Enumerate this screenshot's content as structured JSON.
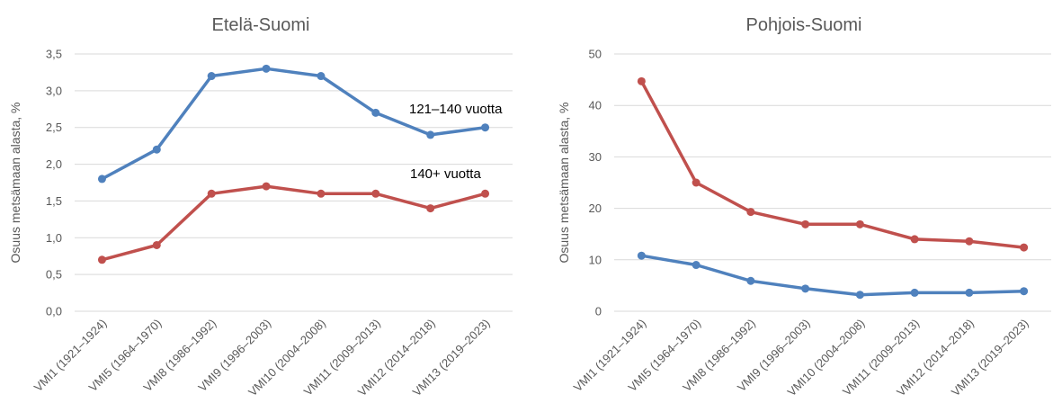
{
  "colors": {
    "blue": "#4f81bd",
    "red": "#c0504d",
    "grid": "#d9d9d9",
    "text": "#595959"
  },
  "chart_data": [
    {
      "type": "line",
      "title": "Etelä-Suomi",
      "xlabel": "",
      "ylabel": "Osuus metsämaan alasta, %",
      "ylim": [
        0,
        3.5
      ],
      "yticks": [
        "0,0",
        "0,5",
        "1,0",
        "1,5",
        "2,0",
        "2,5",
        "3,0",
        "3,5"
      ],
      "grid": true,
      "categories": [
        "VMI1 (1921–1924)",
        "VMI5 (1964–1970)",
        "VMI8 (1986–1992)",
        "VMI9 (1996–2003)",
        "VMI10 (2004–2008)",
        "VMI11 (2009–2013)",
        "VMI12 (2014–2018)",
        "VMI13 (2019–2023)"
      ],
      "series": [
        {
          "name": "121–140 vuotta",
          "color": "#4f81bd",
          "values": [
            1.8,
            2.2,
            3.2,
            3.3,
            3.2,
            2.7,
            2.4,
            2.5
          ]
        },
        {
          "name": "140+ vuotta",
          "color": "#c0504d",
          "values": [
            0.7,
            0.9,
            1.6,
            1.7,
            1.6,
            1.6,
            1.4,
            1.6
          ]
        }
      ]
    },
    {
      "type": "line",
      "title": "Pohjois-Suomi",
      "xlabel": "",
      "ylabel": "Osuus metsämaan alasta, %",
      "ylim": [
        0,
        50
      ],
      "yticks": [
        "0",
        "10",
        "20",
        "30",
        "40",
        "50"
      ],
      "grid": true,
      "categories": [
        "VMI1 (1921–1924)",
        "VMI5 (1964–1970)",
        "VMI8 (1986–1992)",
        "VMI9 (1996–2003)",
        "VMI10 (2004–2008)",
        "VMI11 (2009–2013)",
        "VMI12 (2014–2018)",
        "VMI13 (2019–2023)"
      ],
      "series": [
        {
          "color": "#c0504d",
          "values": [
            44.7,
            25.0,
            19.3,
            16.9,
            16.9,
            14.0,
            13.6,
            12.4
          ]
        },
        {
          "color": "#4f81bd",
          "values": [
            10.8,
            9.0,
            5.9,
            4.4,
            3.2,
            3.6,
            3.6,
            3.9
          ]
        }
      ]
    }
  ]
}
